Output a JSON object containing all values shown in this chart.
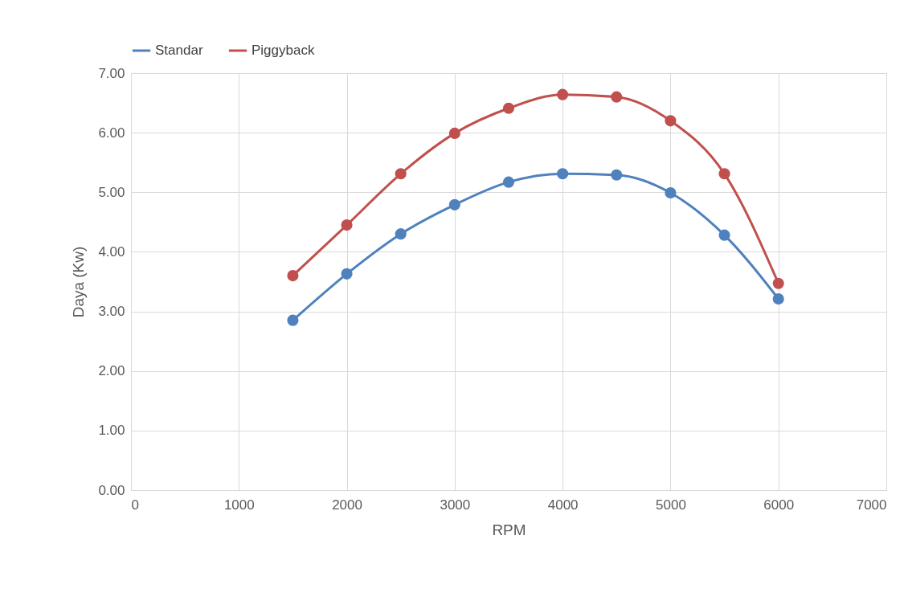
{
  "chart_data": {
    "type": "line",
    "xlabel": "RPM",
    "ylabel": "Daya (Kw)",
    "x": [
      1500,
      2000,
      2500,
      3000,
      3500,
      4000,
      4500,
      5000,
      5500,
      6000
    ],
    "series": [
      {
        "name": "Standar",
        "color": "#4f81bd",
        "values": [
          2.85,
          3.63,
          4.3,
          4.79,
          5.17,
          5.31,
          5.29,
          4.99,
          4.28,
          3.21
        ]
      },
      {
        "name": "Piggyback",
        "color": "#c0504d",
        "values": [
          3.6,
          4.45,
          5.31,
          5.99,
          6.41,
          6.64,
          6.6,
          6.2,
          5.31,
          3.47
        ]
      }
    ],
    "xlim": [
      0,
      7000
    ],
    "xticks": [
      0,
      1000,
      2000,
      3000,
      4000,
      5000,
      6000,
      7000
    ],
    "ylim": [
      0,
      7
    ],
    "yticks": [
      {
        "value": 0,
        "label": "0.00"
      },
      {
        "value": 1,
        "label": "1.00"
      },
      {
        "value": 2,
        "label": "2.00"
      },
      {
        "value": 3,
        "label": "3.00"
      },
      {
        "value": 4,
        "label": "4.00"
      },
      {
        "value": 5,
        "label": "5.00"
      },
      {
        "value": 6,
        "label": "6.00"
      },
      {
        "value": 7,
        "label": "7.00"
      }
    ],
    "grid": true,
    "legend": "top",
    "marker": "circle",
    "line_style": "solid"
  }
}
